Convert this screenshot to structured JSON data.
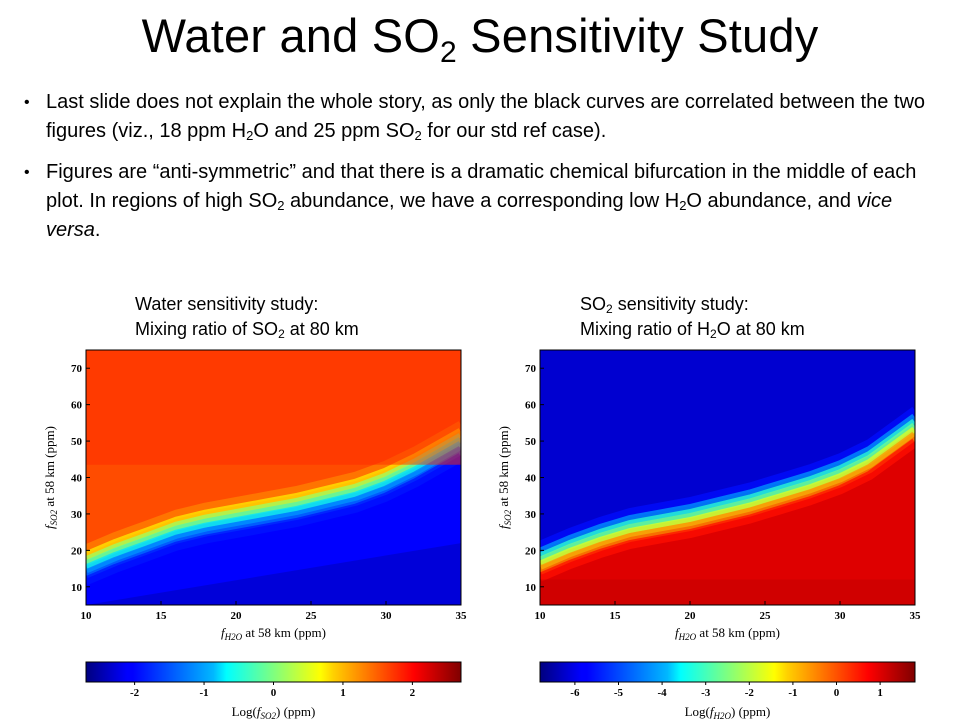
{
  "slide": {
    "title_main": "Water and SO",
    "title_sub": "2",
    "title_rest": " Sensitivity Study",
    "bullet1": {
      "t1": "Last slide does not explain the whole story, as only the black curves are correlated between the two figures (viz., 18 ppm H",
      "s1": "2",
      "t2": "O and 25 ppm SO",
      "s2": "2",
      "t3": " for our std ref case)."
    },
    "bullet2": {
      "t1": "Figures are “anti-symmetric” and that there is a dramatic chemical bifurcation in the middle of each plot. In regions of high SO",
      "s1": "2",
      "t2": " abundance, we have a corresponding low H",
      "s2": "2",
      "t3": "O abundance, and ",
      "em": "vice versa",
      "t4": "."
    }
  },
  "captions": {
    "left": {
      "line1": "Water sensitivity study:",
      "line2a": "Mixing ratio of SO",
      "sub": "2",
      "line2b": " at 80 km"
    },
    "right": {
      "line1a": "SO",
      "sub1": "2",
      "line1b": " sensitivity study:",
      "line2a": "Mixing ratio of H",
      "sub2": "2",
      "line2b": "O at 80 km"
    }
  },
  "chart_data": [
    {
      "type": "heatmap",
      "xlabel_f": "f",
      "xlabel_sub": "H2O",
      "xlabel_rest": " at 58 km (ppm)",
      "ylabel_f": "f",
      "ylabel_sub": "SO2",
      "ylabel_rest": " at 58 km (ppm)",
      "xlim": [
        10,
        35
      ],
      "ylim": [
        5,
        75
      ],
      "xticks": [
        10,
        15,
        20,
        25,
        30,
        35
      ],
      "yticks": [
        10,
        20,
        30,
        40,
        50,
        60,
        70
      ],
      "colorbar_label_pre": "Log(",
      "colorbar_label_f": "f",
      "colorbar_label_sub": "SO2",
      "colorbar_label_post": ") (ppm)",
      "colorbar_range": [
        -2.7,
        2.7
      ],
      "colorbar_ticks": [
        -2,
        -1,
        0,
        1,
        2
      ],
      "colormap": "jet",
      "boundary_x": [
        10,
        12,
        14,
        16,
        18,
        20,
        22,
        24,
        26,
        28,
        30,
        32,
        35
      ],
      "boundary_y": [
        16,
        19.5,
        22.5,
        25.5,
        27.5,
        29,
        30.5,
        32,
        34,
        36,
        39,
        43,
        50
      ],
      "high_side": "above",
      "value_high": 1.6,
      "value_low": -2.1
    },
    {
      "type": "heatmap",
      "xlabel_f": "f",
      "xlabel_sub": "H2O",
      "xlabel_rest": " at 58 km (ppm)",
      "ylabel_f": "f",
      "ylabel_sub": "SO2",
      "ylabel_rest": " at 58 km (ppm)",
      "xlim": [
        10,
        35
      ],
      "ylim": [
        5,
        75
      ],
      "xticks": [
        10,
        15,
        20,
        25,
        30,
        35
      ],
      "yticks": [
        10,
        20,
        30,
        40,
        50,
        60,
        70
      ],
      "colorbar_label_pre": "Log(",
      "colorbar_label_f": "f",
      "colorbar_label_sub": "H2O",
      "colorbar_label_post": ") (ppm)",
      "colorbar_range": [
        -6.8,
        1.8
      ],
      "colorbar_ticks": [
        -6,
        -5,
        -4,
        -3,
        -2,
        -1,
        0,
        1
      ],
      "colormap": "jet",
      "boundary_x": [
        10,
        12,
        14,
        16,
        18,
        20,
        22,
        24,
        26,
        28,
        30,
        32,
        35
      ],
      "boundary_y": [
        17,
        20.5,
        23.5,
        26,
        27.5,
        29,
        31,
        33,
        35.5,
        38,
        41,
        45,
        54
      ],
      "high_side": "below",
      "value_high": 1.0,
      "value_low": -6.2
    }
  ]
}
